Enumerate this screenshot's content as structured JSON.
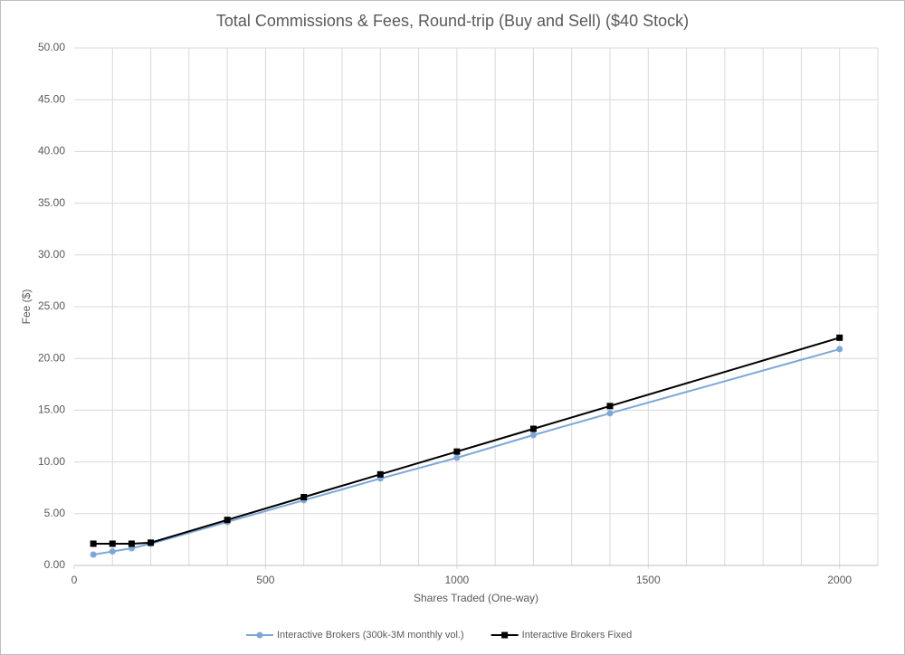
{
  "chart_data": {
    "type": "line",
    "title": "Total Commissions & Fees, Round-trip (Buy and Sell) ($40 Stock)",
    "x_label": "Shares Traded (One-way)",
    "y_label": "Fee ($)",
    "x": [
      50,
      100,
      150,
      200,
      400,
      600,
      800,
      1000,
      1200,
      1400,
      2000
    ],
    "series": [
      {
        "name": "Interactive Brokers (300k-3M monthly vol.)",
        "color": "#7da7d9",
        "marker": "circle",
        "values": [
          1.05,
          1.35,
          1.66,
          2.1,
          4.2,
          6.3,
          8.4,
          10.4,
          12.6,
          14.7,
          20.9
        ]
      },
      {
        "name": "Interactive Brokers Fixed",
        "color": "#000000",
        "marker": "square",
        "values": [
          2.1,
          2.1,
          2.1,
          2.2,
          4.4,
          6.6,
          8.8,
          11.0,
          13.2,
          15.4,
          22.0
        ]
      }
    ],
    "xlim": [
      0,
      2100
    ],
    "xticks": [
      0,
      500,
      1000,
      1500,
      2000
    ],
    "x_gridlines": [
      100,
      200,
      300,
      400,
      500,
      600,
      700,
      800,
      900,
      1000,
      1100,
      1200,
      1300,
      1400,
      1500,
      1600,
      1700,
      1800,
      1900,
      2000,
      2100
    ],
    "ylim": [
      0,
      50
    ],
    "yticks": [
      {
        "value": 0,
        "label": "0.00"
      },
      {
        "value": 5,
        "label": "5.00"
      },
      {
        "value": 10,
        "label": "10.00"
      },
      {
        "value": 15,
        "label": "15.00"
      },
      {
        "value": 20,
        "label": "20.00"
      },
      {
        "value": 25,
        "label": "25.00"
      },
      {
        "value": 30,
        "label": "30.00"
      },
      {
        "value": 35,
        "label": "35.00"
      },
      {
        "value": 40,
        "label": "40.00"
      },
      {
        "value": 45,
        "label": "45.00"
      },
      {
        "value": 50,
        "label": "50.00"
      }
    ],
    "grid": true,
    "legend": "bottom"
  }
}
